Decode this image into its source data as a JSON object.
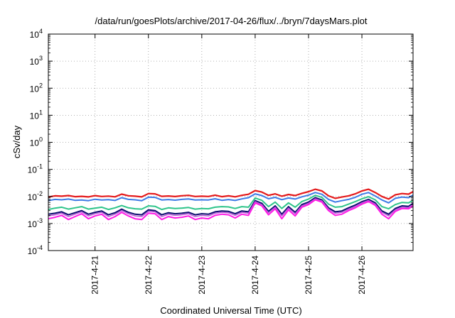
{
  "chart_data": {
    "type": "line",
    "title": "/data/run/goesPlots/archive/2017-04-26/flux/../bryn/7daysMars.plot",
    "xlabel": "Coordinated Universal Time (UTC)",
    "ylabel": "cSv/day",
    "y_scale": "log",
    "ylim": [
      0.0001,
      10000
    ],
    "y_ticks": [
      {
        "base": "10",
        "exp": "4",
        "value": 10000
      },
      {
        "base": "10",
        "exp": "3",
        "value": 1000
      },
      {
        "base": "10",
        "exp": "2",
        "value": 100
      },
      {
        "base": "10",
        "exp": "1",
        "value": 10
      },
      {
        "base": "10",
        "exp": "0",
        "value": 1
      },
      {
        "base": "10",
        "exp": "-1",
        "value": 0.1
      },
      {
        "base": "10",
        "exp": "-2",
        "value": 0.01
      },
      {
        "base": "10",
        "exp": "-3",
        "value": 0.001
      },
      {
        "base": "10",
        "exp": "-4",
        "value": 0.0001
      }
    ],
    "xlim": [
      "2017-04-20T03:00",
      "2017-04-26T23:00"
    ],
    "x_ticks": [
      {
        "label": "2017-4-21",
        "value": "2017-04-21"
      },
      {
        "label": "2017-4-22",
        "value": "2017-04-22"
      },
      {
        "label": "2017-4-23",
        "value": "2017-04-23"
      },
      {
        "label": "2017-4-24",
        "value": "2017-04-24"
      },
      {
        "label": "2017-4-25",
        "value": "2017-04-25"
      },
      {
        "label": "2017-4-26",
        "value": "2017-04-26"
      }
    ],
    "grid": true,
    "x": [
      "2017-04-20T03:00",
      "2017-04-20T06:00",
      "2017-04-20T09:00",
      "2017-04-20T12:00",
      "2017-04-20T15:00",
      "2017-04-20T18:00",
      "2017-04-20T21:00",
      "2017-04-21T00:00",
      "2017-04-21T03:00",
      "2017-04-21T06:00",
      "2017-04-21T09:00",
      "2017-04-21T12:00",
      "2017-04-21T15:00",
      "2017-04-21T18:00",
      "2017-04-21T21:00",
      "2017-04-22T00:00",
      "2017-04-22T03:00",
      "2017-04-22T06:00",
      "2017-04-22T09:00",
      "2017-04-22T12:00",
      "2017-04-22T15:00",
      "2017-04-22T18:00",
      "2017-04-22T21:00",
      "2017-04-23T00:00",
      "2017-04-23T03:00",
      "2017-04-23T06:00",
      "2017-04-23T09:00",
      "2017-04-23T12:00",
      "2017-04-23T15:00",
      "2017-04-23T18:00",
      "2017-04-23T21:00",
      "2017-04-24T00:00",
      "2017-04-24T03:00",
      "2017-04-24T06:00",
      "2017-04-24T09:00",
      "2017-04-24T12:00",
      "2017-04-24T15:00",
      "2017-04-24T18:00",
      "2017-04-24T21:00",
      "2017-04-25T00:00",
      "2017-04-25T03:00",
      "2017-04-25T06:00",
      "2017-04-25T09:00",
      "2017-04-25T12:00",
      "2017-04-25T15:00",
      "2017-04-25T18:00",
      "2017-04-25T21:00",
      "2017-04-26T00:00",
      "2017-04-26T03:00",
      "2017-04-26T06:00",
      "2017-04-26T09:00",
      "2017-04-26T12:00",
      "2017-04-26T15:00",
      "2017-04-26T18:00",
      "2017-04-26T21:00",
      "2017-04-26T23:00"
    ],
    "series": [
      {
        "color": "#e41a1c",
        "width": 2.2,
        "values": [
          0.0095,
          0.0105,
          0.0102,
          0.0108,
          0.0098,
          0.0101,
          0.0096,
          0.0107,
          0.01,
          0.0103,
          0.0097,
          0.0122,
          0.0106,
          0.0102,
          0.0096,
          0.0128,
          0.0125,
          0.0101,
          0.0104,
          0.0099,
          0.0106,
          0.011,
          0.01,
          0.0102,
          0.01,
          0.0112,
          0.0098,
          0.0105,
          0.0097,
          0.011,
          0.012,
          0.0165,
          0.0145,
          0.011,
          0.0125,
          0.0102,
          0.0118,
          0.0108,
          0.013,
          0.015,
          0.0185,
          0.016,
          0.0105,
          0.0085,
          0.0095,
          0.0105,
          0.0125,
          0.016,
          0.0185,
          0.014,
          0.01,
          0.008,
          0.0115,
          0.0128,
          0.0122,
          0.015
        ]
      },
      {
        "color": "#3d7be6",
        "width": 2.0,
        "values": [
          0.007,
          0.0078,
          0.0075,
          0.008,
          0.0072,
          0.0074,
          0.007,
          0.0079,
          0.0074,
          0.0076,
          0.0071,
          0.009,
          0.0078,
          0.0075,
          0.007,
          0.0094,
          0.0092,
          0.0074,
          0.0077,
          0.0073,
          0.0078,
          0.0081,
          0.0074,
          0.0075,
          0.0074,
          0.0082,
          0.0072,
          0.0077,
          0.0071,
          0.0081,
          0.009,
          0.0125,
          0.0108,
          0.0082,
          0.0093,
          0.0076,
          0.0088,
          0.008,
          0.0097,
          0.0112,
          0.014,
          0.012,
          0.0078,
          0.0062,
          0.007,
          0.0078,
          0.0093,
          0.012,
          0.014,
          0.0104,
          0.0074,
          0.0058,
          0.0085,
          0.0095,
          0.009,
          0.0112
        ]
      },
      {
        "color": "#2ec48a",
        "width": 2.0,
        "values": [
          0.0033,
          0.0037,
          0.004,
          0.0034,
          0.0038,
          0.0042,
          0.0034,
          0.0037,
          0.004,
          0.0033,
          0.0038,
          0.0046,
          0.0038,
          0.0035,
          0.0034,
          0.0045,
          0.0043,
          0.0033,
          0.0038,
          0.0036,
          0.0037,
          0.0039,
          0.0034,
          0.0036,
          0.0035,
          0.004,
          0.0042,
          0.0041,
          0.0036,
          0.0042,
          0.004,
          0.0088,
          0.0072,
          0.0042,
          0.0062,
          0.0036,
          0.0058,
          0.004,
          0.0065,
          0.008,
          0.011,
          0.0092,
          0.0052,
          0.004,
          0.0042,
          0.0052,
          0.0064,
          0.0082,
          0.0098,
          0.0075,
          0.0042,
          0.0035,
          0.005,
          0.006,
          0.0058,
          0.0072
        ]
      },
      {
        "color": "#0b0b6e",
        "width": 2.0,
        "values": [
          0.0022,
          0.0024,
          0.0027,
          0.0021,
          0.0025,
          0.003,
          0.0022,
          0.0026,
          0.0029,
          0.0021,
          0.0025,
          0.0034,
          0.0026,
          0.0022,
          0.0021,
          0.0032,
          0.003,
          0.0021,
          0.0025,
          0.0023,
          0.0024,
          0.0026,
          0.0021,
          0.0023,
          0.0022,
          0.0027,
          0.0029,
          0.0028,
          0.0023,
          0.0029,
          0.0027,
          0.007,
          0.0056,
          0.0028,
          0.0045,
          0.0022,
          0.0042,
          0.0026,
          0.005,
          0.0062,
          0.009,
          0.0074,
          0.0038,
          0.0027,
          0.0029,
          0.0038,
          0.0048,
          0.0064,
          0.0078,
          0.0058,
          0.0029,
          0.0022,
          0.0036,
          0.0045,
          0.0043,
          0.0056
        ]
      },
      {
        "color": "#b85dd8",
        "width": 1.6,
        "values": [
          0.0019,
          0.0021,
          0.0024,
          0.0018,
          0.0022,
          0.0027,
          0.0019,
          0.0023,
          0.0026,
          0.0018,
          0.0022,
          0.003,
          0.0023,
          0.0019,
          0.0018,
          0.0028,
          0.0027,
          0.0018,
          0.0022,
          0.002,
          0.0021,
          0.0023,
          0.0018,
          0.002,
          0.0019,
          0.0024,
          0.0026,
          0.0025,
          0.002,
          0.0026,
          0.0024,
          0.0064,
          0.005,
          0.0025,
          0.004,
          0.0019,
          0.0037,
          0.0023,
          0.0045,
          0.0056,
          0.0082,
          0.0068,
          0.0034,
          0.0024,
          0.0026,
          0.0034,
          0.0043,
          0.0058,
          0.0071,
          0.0052,
          0.0026,
          0.0019,
          0.0032,
          0.004,
          0.0039,
          0.005
        ]
      },
      {
        "color": "#ff1ae6",
        "width": 2.0,
        "values": [
          0.0015,
          0.0017,
          0.002,
          0.0014,
          0.0018,
          0.0023,
          0.0015,
          0.0019,
          0.0022,
          0.0014,
          0.0018,
          0.0026,
          0.0019,
          0.0015,
          0.0014,
          0.0024,
          0.0023,
          0.0014,
          0.0018,
          0.0016,
          0.0017,
          0.0019,
          0.0014,
          0.0016,
          0.0015,
          0.002,
          0.0022,
          0.0021,
          0.0016,
          0.0022,
          0.002,
          0.0058,
          0.0045,
          0.0021,
          0.0035,
          0.0015,
          0.0032,
          0.0019,
          0.004,
          0.005,
          0.0075,
          0.0062,
          0.003,
          0.002,
          0.0022,
          0.003,
          0.0038,
          0.0052,
          0.0065,
          0.0047,
          0.0022,
          0.0015,
          0.0028,
          0.0036,
          0.0035,
          0.0045
        ]
      }
    ]
  }
}
